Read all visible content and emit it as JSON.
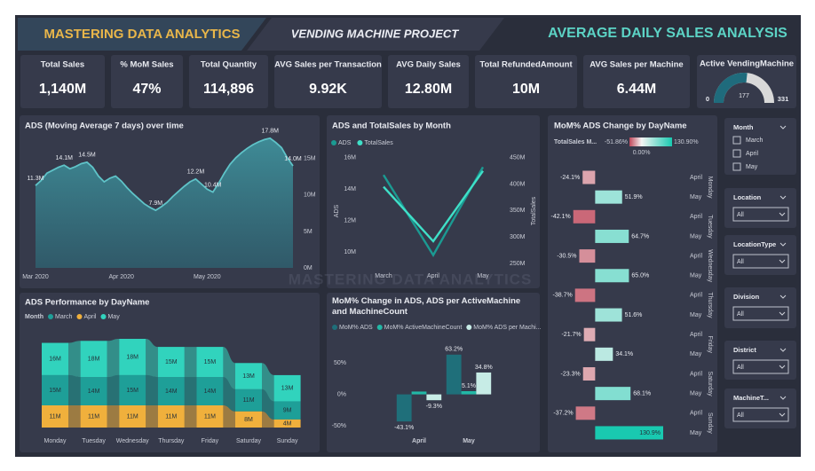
{
  "header": {
    "left": "MASTERING DATA ANALYTICS",
    "middle": "VENDING MACHINE PROJECT",
    "right": "AVERAGE DAILY SALES ANALYSIS"
  },
  "watermark": "MASTERING DATA ANALYTICS",
  "kpis": [
    {
      "label": "Total Sales",
      "value": "1,140M"
    },
    {
      "label": "% MoM Sales",
      "value": "47%"
    },
    {
      "label": "Total Quantity",
      "value": "114,896"
    },
    {
      "label": "AVG Sales per Transaction",
      "value": "9.92K"
    },
    {
      "label": "AVG Daily Sales",
      "value": "12.80M"
    },
    {
      "label": "Total RefundedAmount",
      "value": "10M"
    },
    {
      "label": "AVG Sales per Machine",
      "value": "6.44M"
    }
  ],
  "gauge": {
    "title": "Active VendingMachine",
    "value": 177,
    "min": 0,
    "max": 331,
    "color": "#1f6b7c"
  },
  "filters": [
    {
      "label": "Month",
      "options": [
        "March",
        "April",
        "May"
      ]
    },
    {
      "label": "Location",
      "value": "All"
    },
    {
      "label": "LocationType",
      "value": "All"
    },
    {
      "label": "Division",
      "value": "All"
    },
    {
      "label": "District",
      "value": "All"
    },
    {
      "label": "MachineT...",
      "value": "All"
    }
  ],
  "chart_data": [
    {
      "type": "area",
      "title": "ADS (Moving Average 7 days) over time",
      "color": "#5fc3c8",
      "values": [
        11.3,
        12.0,
        13.0,
        13.4,
        13.8,
        14.1,
        13.6,
        13.9,
        14.3,
        14.5,
        13.8,
        12.6,
        11.8,
        12.3,
        12.6,
        11.9,
        11.0,
        10.2,
        9.5,
        8.8,
        8.3,
        7.9,
        8.4,
        9.0,
        9.8,
        10.5,
        11.2,
        11.8,
        12.2,
        11.5,
        10.8,
        10.4,
        11.6,
        13.0,
        14.2,
        15.1,
        15.8,
        16.4,
        16.9,
        17.3,
        17.6,
        17.8,
        17.2,
        16.5,
        15.1,
        14.0
      ],
      "value_labels": [
        "11.3M",
        null,
        null,
        null,
        null,
        "14.1M",
        null,
        null,
        null,
        "14.5M",
        null,
        null,
        null,
        null,
        null,
        null,
        null,
        null,
        null,
        null,
        null,
        "7.9M",
        null,
        null,
        null,
        null,
        null,
        null,
        "12.2M",
        null,
        null,
        "10.4M",
        null,
        null,
        null,
        null,
        null,
        null,
        null,
        null,
        null,
        "17.8M",
        null,
        null,
        null,
        "14.0M"
      ],
      "xticks": [
        {
          "value": 0,
          "label": "Mar 2020"
        },
        {
          "value": 15,
          "label": "Apr 2020"
        },
        {
          "value": 30,
          "label": "May 2020"
        }
      ],
      "ylim": [
        0,
        18.5
      ],
      "yticks": [
        {
          "value": 0,
          "label": "0M"
        },
        {
          "value": 5,
          "label": "5M"
        },
        {
          "value": 10,
          "label": "10M"
        },
        {
          "value": 15,
          "label": "15M"
        }
      ]
    },
    {
      "type": "line",
      "title": "ADS and TotalSales by Month",
      "categories": [
        "March",
        "April",
        "May"
      ],
      "series": [
        {
          "name": "ADS",
          "color": "#1b9a92",
          "values": [
            14.9,
            9.8,
            15.4
          ]
        },
        {
          "name": "TotalSales",
          "color": "#3fe0c8",
          "values": [
            395,
            292,
            425
          ],
          "axis": "y2"
        }
      ],
      "ylabel": "ADS",
      "y2label": "TotalSales",
      "ylim": [
        9.1,
        16.1
      ],
      "yticks": [
        {
          "value": 10,
          "label": "10M"
        },
        {
          "value": 12,
          "label": "12M"
        },
        {
          "value": 14,
          "label": "14M"
        },
        {
          "value": 16,
          "label": "16M"
        }
      ],
      "y2lim": [
        245,
        453
      ],
      "y2ticks": [
        {
          "value": 250,
          "label": "250M"
        },
        {
          "value": 300,
          "label": "300M"
        },
        {
          "value": 350,
          "label": "350M"
        },
        {
          "value": 400,
          "label": "400M"
        },
        {
          "value": 450,
          "label": "450M"
        }
      ]
    },
    {
      "type": "hbar",
      "title": "MoM% ADS Change by DayName",
      "legend_title": "TotalSales M...",
      "color_min": {
        "value": -51.86,
        "label": "-51.86%"
      },
      "color_mid": {
        "value": 0,
        "label": "0.00%"
      },
      "color_max": {
        "value": 130.9,
        "label": "130.90%"
      },
      "color_scale": [
        "#c0485b",
        "#f4f4f4",
        "#19c9b0"
      ],
      "groups": [
        "Monday",
        "Tuesday",
        "Wednesday",
        "Thursday",
        "Friday",
        "Saturday",
        "Sunday"
      ],
      "categories": [
        "April",
        "May",
        "April",
        "May",
        "April",
        "May",
        "April",
        "May",
        "April",
        "May",
        "April",
        "May",
        "April",
        "May"
      ],
      "values": [
        -24.1,
        51.9,
        -42.1,
        64.7,
        -30.5,
        65.0,
        -38.7,
        51.6,
        -21.7,
        34.1,
        -23.3,
        68.1,
        -37.2,
        130.9
      ],
      "value_labels": [
        "-24.1%",
        "51.9%",
        "-42.1%",
        "64.7%",
        "-30.5%",
        "65.0%",
        "-38.7%",
        "51.6%",
        "-21.7%",
        "34.1%",
        "-23.3%",
        "68.1%",
        "-37.2%",
        "130.9%"
      ]
    },
    {
      "type": "ribbon",
      "title": "ADS Performance by DayName",
      "legend_title": "Month",
      "categories": [
        "Monday",
        "Tuesday",
        "Wednesday",
        "Thursday",
        "Friday",
        "Saturday",
        "Sunday"
      ],
      "series": [
        {
          "name": "March",
          "color": "#1e9f98",
          "values": [
            15,
            14,
            15,
            14,
            14,
            11,
            9
          ],
          "value_labels": [
            "15M",
            "14M",
            "15M",
            "14M",
            "14M",
            "11M",
            "9M"
          ]
        },
        {
          "name": "April",
          "color": "#f0b03c",
          "values": [
            11,
            11,
            11,
            11,
            11,
            8,
            4
          ],
          "value_labels": [
            "11M",
            "11M",
            "11M",
            "11M",
            "11M",
            "8M",
            "4M"
          ]
        },
        {
          "name": "May",
          "color": "#31d3bd",
          "values": [
            16,
            18,
            18,
            15,
            15,
            13,
            13
          ],
          "value_labels": [
            "16M",
            "18M",
            "18M",
            "15M",
            "15M",
            "13M",
            "13M"
          ]
        }
      ]
    },
    {
      "type": "grouped_bar",
      "title": "MoM% Change in ADS, ADS per ActiveMachine and MachineCount",
      "categories": [
        "April",
        "May"
      ],
      "series": [
        {
          "name": "MoM% ADS",
          "color": "#1f6f7a",
          "values": [
            -43.1,
            63.2
          ],
          "value_labels": [
            "-43.1%",
            "63.2%"
          ]
        },
        {
          "name": "MoM% ActiveMachineCount",
          "color": "#22b8a6",
          "values": [
            4.5,
            5.1
          ],
          "value_labels": [
            null,
            "5.1%"
          ]
        },
        {
          "name": "MoM% ADS per Machi...",
          "color": "#c7ece6",
          "values": [
            -9.3,
            34.8
          ],
          "value_labels": [
            "-9.3%",
            "34.8%"
          ]
        }
      ],
      "ylim": [
        -57,
        70
      ],
      "yticks": [
        {
          "value": -50,
          "label": "-50%"
        },
        {
          "value": 0,
          "label": "0%"
        },
        {
          "value": 50,
          "label": "50%"
        }
      ]
    }
  ]
}
